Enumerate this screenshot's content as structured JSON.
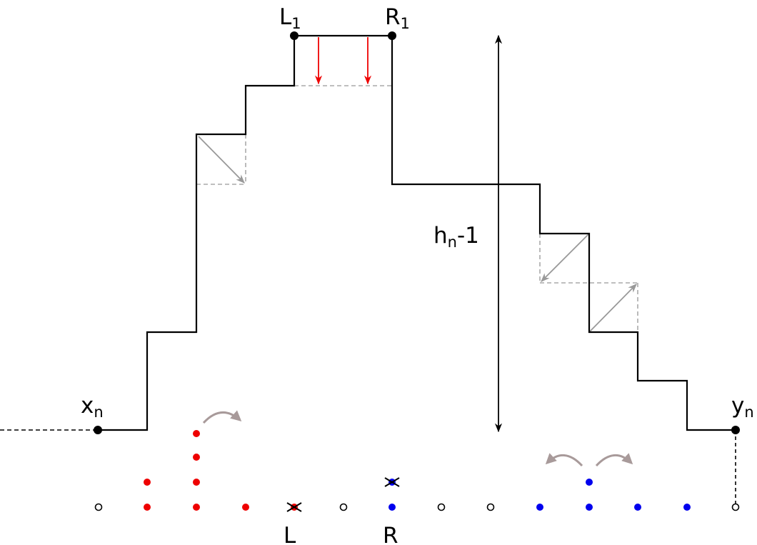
{
  "labels": {
    "l1": {
      "base": "L",
      "sub": "1"
    },
    "r1": {
      "base": "R",
      "sub": "1"
    },
    "height": {
      "base": "h",
      "sub": "n",
      "suffix": "-1"
    },
    "xn": {
      "base": "x",
      "sub": "n"
    },
    "yn": {
      "base": "y",
      "sub": "n"
    },
    "l": {
      "base": "L"
    },
    "r": {
      "base": "R"
    }
  }
}
